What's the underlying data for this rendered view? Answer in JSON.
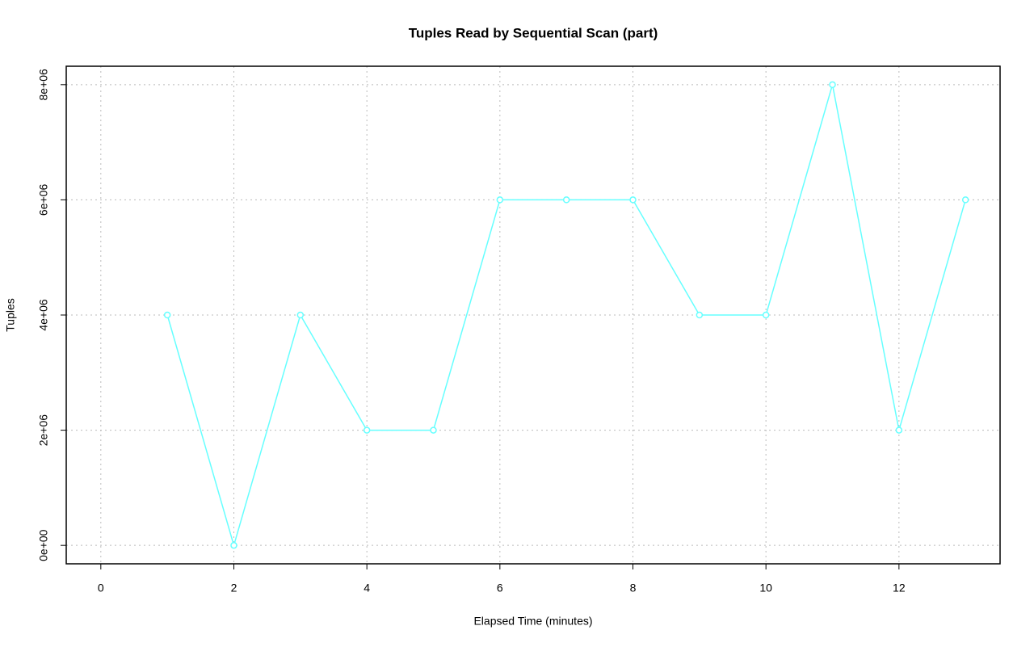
{
  "chart_data": {
    "type": "line",
    "title": "Tuples Read by Sequential Scan (part)",
    "x_label": "Elapsed Time (minutes)",
    "y_label": "Tuples",
    "x": [
      1,
      2,
      3,
      4,
      5,
      6,
      7,
      8,
      9,
      10,
      11,
      12,
      13
    ],
    "values": [
      4000000,
      0,
      4000000,
      2000000,
      2000000,
      6000000,
      6000000,
      6000000,
      4000000,
      4000000,
      8000000,
      2000000,
      6000000
    ],
    "color": "#66ffff",
    "xlim": [
      -0.52,
      13.52
    ],
    "xticks": [
      0,
      2,
      4,
      6,
      8,
      10,
      12
    ],
    "ylim": [
      -320000,
      8320000
    ],
    "yticks": [
      {
        "value": 0,
        "label": "0e+00"
      },
      {
        "value": 2000000,
        "label": "2e+06"
      },
      {
        "value": 4000000,
        "label": "4e+06"
      },
      {
        "value": 6000000,
        "label": "6e+06"
      },
      {
        "value": 8000000,
        "label": "8e+06"
      }
    ],
    "grid": true
  }
}
